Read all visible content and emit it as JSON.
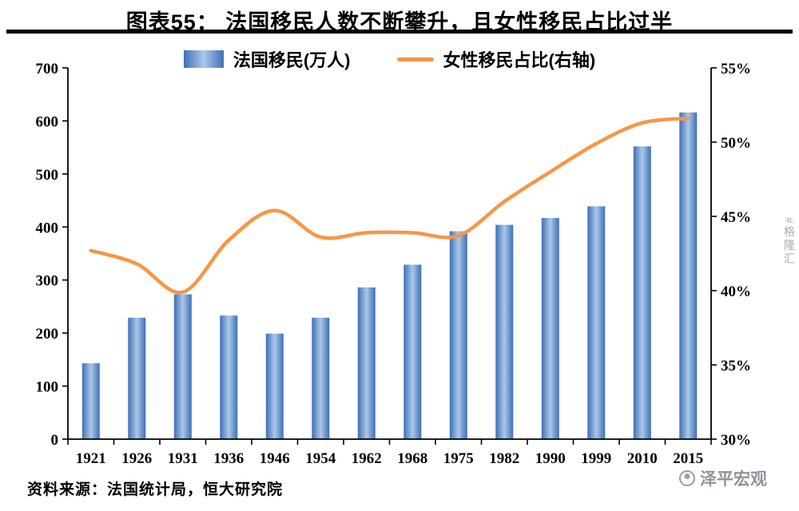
{
  "title": "图表55： 法国移民人数不断攀升，且女性移民占比过半",
  "legend": {
    "bar_label": "法国移民(万人)",
    "line_label": "女性移民占比(右轴)"
  },
  "source": "资料来源：法国统计局，恒大研究院",
  "watermarks": {
    "side": "#格隆汇",
    "bottom": "泽平宏观"
  },
  "chart_data": {
    "type": "bar+line",
    "title": "图表55： 法国移民人数不断攀升，且女性移民占比过半",
    "categories": [
      "1921",
      "1926",
      "1931",
      "1936",
      "1946",
      "1954",
      "1962",
      "1968",
      "1975",
      "1982",
      "1990",
      "1999",
      "2010",
      "2015"
    ],
    "series": [
      {
        "name": "法国移民(万人)",
        "type": "bar",
        "axis": "left",
        "values": [
          143,
          229,
          273,
          233,
          199,
          229,
          286,
          329,
          392,
          404,
          417,
          439,
          552,
          616
        ]
      },
      {
        "name": "女性移民占比(右轴)",
        "type": "line",
        "axis": "right",
        "values": [
          42.7,
          41.8,
          39.9,
          43.4,
          45.4,
          43.6,
          43.9,
          43.9,
          43.7,
          46.0,
          48.0,
          49.9,
          51.3,
          51.6
        ]
      }
    ],
    "left_axis": {
      "min": 0,
      "max": 700,
      "step": 100
    },
    "right_axis": {
      "min": 30,
      "max": 55,
      "step": 5,
      "format": "percent"
    },
    "grid": false,
    "legend_position": "top",
    "colors": {
      "bar_edge": "#3f6fb5",
      "bar_center": "#a9c9ea",
      "line": "#f79646",
      "axis": "#000000"
    }
  }
}
